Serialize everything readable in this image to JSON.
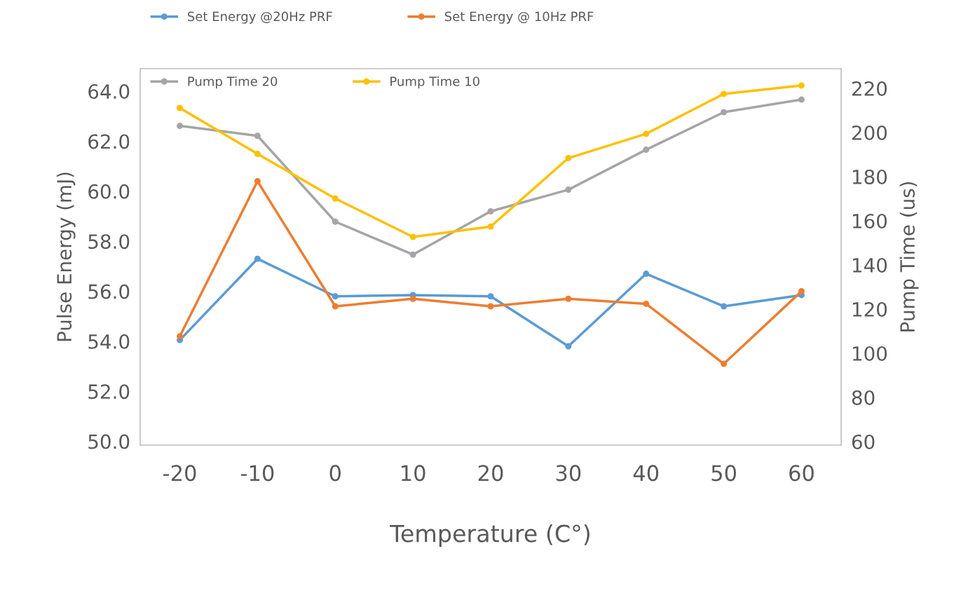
{
  "chart_data": {
    "type": "line",
    "xlabel": "Temperature (C°)",
    "ylabel": "Pulse Energy (mJ)",
    "y2label": "Pump Time (us)",
    "categories": [
      "-20",
      "-10",
      "0",
      "10",
      "20",
      "30",
      "40",
      "50",
      "60"
    ],
    "series": [
      {
        "name": "Set Energy @20Hz PRF",
        "color": "#5b9bd5",
        "values": [
          54.05,
          57.3,
          55.8,
          55.85,
          55.8,
          53.8,
          56.7,
          55.4,
          55.85
        ]
      },
      {
        "name": "Set Energy @ 10Hz PRF",
        "color": "#ed7d31",
        "values": [
          54.2,
          60.4,
          55.4,
          55.7,
          55.4,
          55.7,
          55.5,
          53.1,
          56.0
        ]
      },
      {
        "name": "Pump Time 20",
        "color": "#a5a5a5",
        "axis": "y2",
        "values": [
          203,
          198.5,
          159.6,
          144.7,
          164.3,
          174.1,
          192.2,
          209.2,
          214.9
        ]
      },
      {
        "name": "Pump Time 10",
        "color": "#ffc000",
        "axis": "y2",
        "values": [
          211.1,
          190.3,
          170.1,
          152.7,
          157.4,
          188.4,
          199.4,
          217.5,
          221.3
        ]
      }
    ],
    "ylim": [
      49.85,
      64.9
    ],
    "yticks": [
      {
        "value": 50,
        "label": "50.0"
      },
      {
        "value": 52,
        "label": "52.0"
      },
      {
        "value": 54,
        "label": "54.0"
      },
      {
        "value": 56,
        "label": "56.0"
      },
      {
        "value": 58,
        "label": "58.0"
      },
      {
        "value": 60,
        "label": "60.0"
      },
      {
        "value": 62,
        "label": "62.0"
      },
      {
        "value": 64,
        "label": "64.0"
      }
    ],
    "y2lim": [
      58.4,
      228.9
    ],
    "y2ticks": [
      60,
      80,
      100,
      120,
      140,
      160,
      180,
      200,
      220
    ],
    "marker": "circle",
    "line_style": "solid",
    "legend": "top",
    "grid": false
  }
}
